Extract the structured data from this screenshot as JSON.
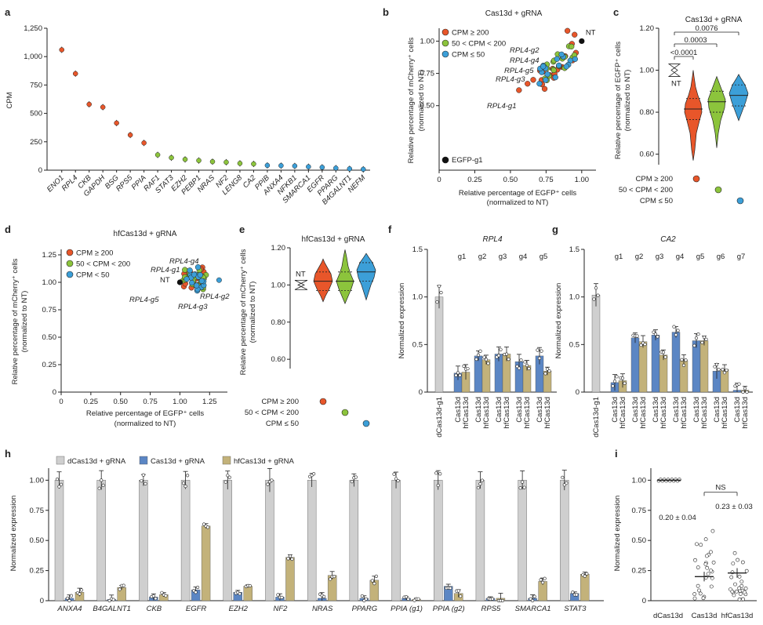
{
  "colors": {
    "high": "#e8562a",
    "mid": "#8cc43c",
    "low": "#3c9fd8",
    "grey": "#cfcfcf",
    "blue": "#5b86c4",
    "tan": "#c3b27a",
    "black": "#111111"
  },
  "legend_labels": {
    "high": "CPM ≥ 200",
    "mid": "50 < CPM < 200",
    "low": "CPM ≤ 50",
    "low_d": "CPM < 50",
    "egfp": "EGFP-g1",
    "nt": "NT"
  },
  "chart_data": [
    {
      "panel": "a",
      "type": "scatter",
      "title": "",
      "ylabel": "CPM",
      "ylim": [
        0,
        1250
      ],
      "yticks": [
        "0",
        "250",
        "500",
        "750",
        "1,000",
        "1,250"
      ],
      "categories": [
        "ENO1",
        "RPL4",
        "CKB",
        "GAPDH",
        "BSG",
        "RPS5",
        "PPIA",
        "RAF1",
        "STAT3",
        "EZH2",
        "PEBP1",
        "NRAS",
        "NF2",
        "LENG8",
        "CA2",
        "PPIB",
        "ANXA4",
        "NFKB1",
        "SMARCA1",
        "EGFR",
        "PPARG",
        "B4GALNT1",
        "NEFM"
      ],
      "values": [
        1060,
        850,
        580,
        555,
        415,
        310,
        240,
        135,
        110,
        95,
        85,
        75,
        70,
        60,
        55,
        42,
        40,
        37,
        30,
        25,
        18,
        12,
        8
      ],
      "groups": [
        "high",
        "high",
        "high",
        "high",
        "high",
        "high",
        "high",
        "mid",
        "mid",
        "mid",
        "mid",
        "mid",
        "mid",
        "mid",
        "mid",
        "low",
        "low",
        "low",
        "low",
        "low",
        "low",
        "low",
        "low"
      ]
    },
    {
      "panel": "b",
      "type": "scatter",
      "title": "Cas13d + gRNA",
      "xlabel": "Relative percentage of EGFP⁺ cells",
      "xlabel2": "(normalized to NT)",
      "ylabel": "Relative percentage of mCherry⁺ cells",
      "ylabel2": "(normalized to NT)",
      "xlim": [
        0,
        1.1
      ],
      "ylim": [
        0,
        1.1
      ],
      "xticks": [
        "0",
        "0.25",
        "0.50",
        "0.75",
        "1.00"
      ],
      "yticks": [
        "0.50",
        "0.75",
        "1.00"
      ],
      "annotations": [
        "RPL4-g2",
        "RPL4-g4",
        "RPL4-g5",
        "RPL4-g3",
        "RPL4-g1",
        "NT",
        "EGFP-g1"
      ]
    },
    {
      "panel": "c",
      "type": "violin",
      "title": "Cas13d + gRNA",
      "ylabel": "Relative percentage of EGFP⁺ cells",
      "ylabel2": "(normalized to NT)",
      "ylim": [
        0.55,
        1.2
      ],
      "yticks": [
        "0.60",
        "0.80",
        "1.00",
        "1.20"
      ],
      "pvalues": [
        "<0.0001",
        "0.0003",
        "0.0076"
      ],
      "medians": [
        0.815,
        0.85,
        0.88
      ],
      "nt": 1.0
    },
    {
      "panel": "d",
      "type": "scatter",
      "title": "hfCas13d + gRNA",
      "xlabel": "Relative percentage of EGFP⁺ cells",
      "xlabel2": "(normalized to NT)",
      "ylabel": "Relative percentage of mCherry⁺ cells",
      "ylabel2": "(normalized to NT)",
      "xlim": [
        0,
        1.4
      ],
      "ylim": [
        0,
        1.3
      ],
      "xticks": [
        "0",
        "0.25",
        "0.50",
        "0.75",
        "1.00",
        "1.25"
      ],
      "yticks": [
        "0",
        "0.25",
        "0.50",
        "0.75",
        "1.00",
        "1.25"
      ],
      "annotations": [
        "RPL4-g4",
        "RPL4-g1",
        "NT",
        "RPL4-g2",
        "RPL4-g5",
        "RPL4-g3"
      ]
    },
    {
      "panel": "e",
      "type": "violin",
      "title": "hfCas13d + gRNA",
      "ylabel": "Relative percentage of mCherry⁺ cells",
      "ylabel2": "(normalized to NT)",
      "ylim": [
        0.55,
        1.2
      ],
      "yticks": [
        "0.60",
        "0.80",
        "1.00",
        "1.20"
      ],
      "medians": [
        1.02,
        1.02,
        1.07
      ],
      "nt": 1.0
    },
    {
      "panel": "f",
      "type": "bar",
      "title": "RPL4",
      "ylabel": "Normalized expression",
      "ylim": [
        0,
        1.5
      ],
      "yticks": [
        "0",
        "0.5",
        "1.0",
        "1.5"
      ],
      "guides": [
        "g1",
        "g2",
        "g3",
        "g4",
        "g5"
      ],
      "categories": [
        "dCas13d-g1",
        "Cas13d",
        "hfCas13d",
        "Cas13d",
        "hfCas13d",
        "Cas13d",
        "hfCas13d",
        "Cas13d",
        "hfCas13d",
        "Cas13d",
        "hfCas13d"
      ],
      "values": [
        1.0,
        0.2,
        0.21,
        0.38,
        0.34,
        0.4,
        0.4,
        0.32,
        0.28,
        0.38,
        0.22
      ]
    },
    {
      "panel": "g",
      "type": "bar",
      "title": "CA2",
      "ylabel": "Normalized expression",
      "ylim": [
        0,
        1.5
      ],
      "yticks": [
        "0",
        "0.5",
        "1.0",
        "1.5"
      ],
      "guides": [
        "g1",
        "g2",
        "g3",
        "g4",
        "g5",
        "g6",
        "g7"
      ],
      "categories": [
        "dCas13d-g1",
        "Cas13d",
        "hfCas13d",
        "Cas13d",
        "hfCas13d",
        "Cas13d",
        "hfCas13d",
        "Cas13d",
        "hfCas13d",
        "Cas13d",
        "hfCas13d",
        "Cas13d",
        "hfCas13d",
        "Cas13d",
        "hfCas13d"
      ],
      "values": [
        1.02,
        0.1,
        0.12,
        0.57,
        0.53,
        0.6,
        0.39,
        0.63,
        0.33,
        0.54,
        0.54,
        0.22,
        0.24,
        0.02,
        0.02
      ]
    },
    {
      "panel": "h",
      "type": "bar",
      "title": "",
      "ylabel": "Normalized expression",
      "ylim": [
        0,
        1.1
      ],
      "yticks": [
        "0",
        "0.25",
        "0.50",
        "0.75",
        "1.00"
      ],
      "series_names": [
        "dCas13d + gRNA",
        "Cas13d + gRNA",
        "hfCas13d + gRNA"
      ],
      "categories": [
        "ANXA4",
        "B4GALNT1",
        "CKB",
        "EGFR",
        "EZH2",
        "NF2",
        "NRAS",
        "PPARG",
        "PPIA (g1)",
        "PPIA (g2)",
        "RPS5",
        "SMARCA1",
        "STAT3"
      ],
      "series": [
        {
          "name": "dCas13d + gRNA",
          "values": [
            1.0,
            1.0,
            1.0,
            1.0,
            1.0,
            1.0,
            1.0,
            1.0,
            1.0,
            1.0,
            1.0,
            1.0,
            1.0
          ]
        },
        {
          "name": "Cas13d + gRNA",
          "values": [
            0.02,
            0.01,
            0.03,
            0.09,
            0.07,
            0.03,
            0.02,
            0.02,
            0.02,
            0.12,
            0.02,
            0.02,
            0.06
          ]
        },
        {
          "name": "hfCas13d + gRNA",
          "values": [
            0.07,
            0.11,
            0.05,
            0.62,
            0.12,
            0.36,
            0.21,
            0.17,
            0.01,
            0.06,
            0.02,
            0.16,
            0.22
          ]
        }
      ]
    },
    {
      "panel": "i",
      "type": "scatter",
      "title": "",
      "ylabel": "Normalized expression",
      "ylim": [
        0,
        1.1
      ],
      "yticks": [
        "0",
        "0.25",
        "0.50",
        "0.75",
        "1.00"
      ],
      "categories": [
        "dCas13d",
        "Cas13d",
        "hfCas13d"
      ],
      "means": [
        1.0,
        0.2,
        0.23
      ],
      "labels": [
        "0.20 ± 0.04",
        "0.23 ± 0.03"
      ],
      "ns": "NS"
    }
  ]
}
